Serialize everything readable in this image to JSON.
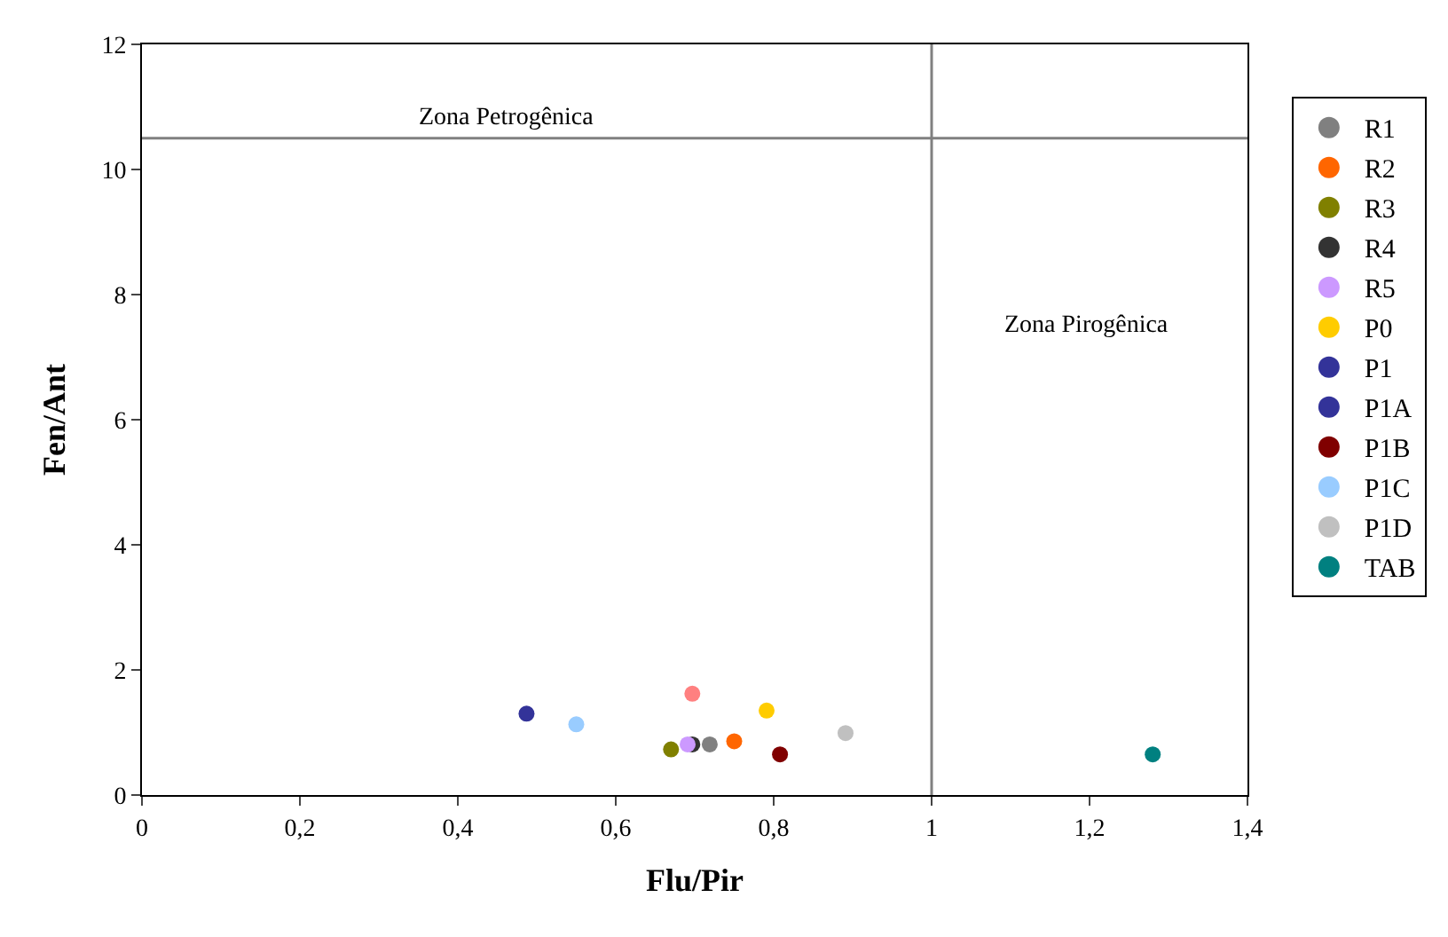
{
  "chart_data": {
    "type": "scatter",
    "xlabel": "Flu/Pir",
    "ylabel": "Fen/Ant",
    "xlim": [
      0,
      1.4
    ],
    "ylim": [
      0,
      12
    ],
    "xticks": [
      0,
      {
        "value": 0.2,
        "label": "0,2"
      },
      {
        "value": 0.4,
        "label": "0,4"
      },
      {
        "value": 0.6,
        "label": "0,6"
      },
      {
        "value": 0.8,
        "label": "0,8"
      },
      1,
      {
        "value": 1.2,
        "label": "1,2"
      },
      {
        "value": 1.4,
        "label": "1,4"
      }
    ],
    "yticks": [
      0,
      2,
      4,
      6,
      8,
      10,
      12
    ],
    "legend": "right",
    "marker": "circle",
    "series": [
      {
        "name": "R1",
        "color": "#808080",
        "x": [
          0.719
        ],
        "values": [
          0.81
        ]
      },
      {
        "name": "R2",
        "color": "#ff6600",
        "x": [
          0.75
        ],
        "values": [
          0.86
        ]
      },
      {
        "name": "R3",
        "color": "#808000",
        "x": [
          0.67
        ],
        "values": [
          0.73
        ]
      },
      {
        "name": "R4",
        "color": "#333333",
        "x": [
          0.697
        ],
        "values": [
          0.81
        ]
      },
      {
        "name": "R5",
        "color": "#cc99ff",
        "x": [
          0.691
        ],
        "values": [
          0.81
        ]
      },
      {
        "name": "P0",
        "color": "#ffcc00",
        "x": [
          0.791
        ],
        "values": [
          1.35
        ]
      },
      {
        "name": "P1",
        "color": "#333399",
        "x": [
          null
        ],
        "values": [
          null
        ]
      },
      {
        "name": "P1A",
        "color": "#333399",
        "x": [
          0.487
        ],
        "values": [
          1.3
        ]
      },
      {
        "name": "P1B",
        "color": "#800000",
        "x": [
          0.808
        ],
        "values": [
          0.65
        ]
      },
      {
        "name": "P1C",
        "color": "#99ccff",
        "x": [
          0.55
        ],
        "values": [
          1.13
        ]
      },
      {
        "name": "P1D",
        "color": "#c0c0c0",
        "x": [
          0.891
        ],
        "values": [
          0.99
        ]
      },
      {
        "name": "TAB",
        "color": "#008080",
        "x": [
          1.28
        ],
        "values": [
          0.65
        ]
      },
      {
        "color": "#ff8080",
        "x": [
          0.697
        ],
        "values": [
          1.62
        ]
      }
    ],
    "ref_lines": [
      {
        "axis": "x",
        "value": 1,
        "color": "#808080"
      },
      {
        "axis": "y",
        "value": 10.5,
        "color": "#808080"
      }
    ],
    "annotations": [
      "Zona Petrogênica",
      "Zona Pirogênica"
    ]
  }
}
